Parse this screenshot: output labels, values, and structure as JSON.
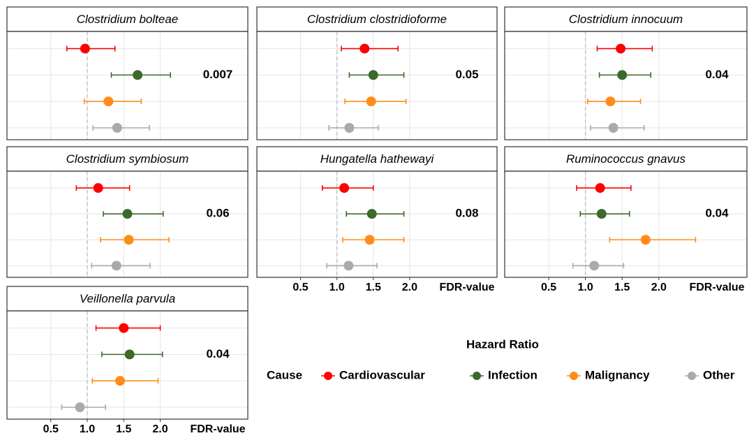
{
  "chart_data": {
    "type": "forest",
    "xlabel": "Hazard Ratio",
    "legend_title": "Cause",
    "fdr_label": "FDR-value",
    "xlim": [
      -0.1,
      3.2
    ],
    "xticks": [
      0.5,
      {
        "value": 1,
        "label": "1.0"
      },
      1.5,
      {
        "value": 2,
        "label": "2.0"
      }
    ],
    "ref": 1,
    "grid": true,
    "series": [
      {
        "name": "Cardiovascular",
        "color": "#ff0000"
      },
      {
        "name": "Infection",
        "color": "#3b6a2c"
      },
      {
        "name": "Malignancy",
        "color": "#ff8c1a"
      },
      {
        "name": "Other",
        "color": "#aaaaaa"
      }
    ],
    "panels": [
      {
        "title": "Clostridium bolteae",
        "fdr": 0.007,
        "values": [
          0.97,
          1.69,
          1.29,
          1.41
        ],
        "lower": [
          0.72,
          1.33,
          0.96,
          1.08
        ],
        "upper": [
          1.38,
          2.14,
          1.74,
          1.85
        ]
      },
      {
        "title": "Clostridium clostridioforme",
        "fdr": 0.05,
        "values": [
          1.38,
          1.5,
          1.47,
          1.17
        ],
        "lower": [
          1.06,
          1.17,
          1.11,
          0.89
        ],
        "upper": [
          1.84,
          1.92,
          1.95,
          1.57
        ]
      },
      {
        "title": "Clostridium innocuum",
        "fdr": 0.04,
        "values": [
          1.48,
          1.5,
          1.34,
          1.38
        ],
        "lower": [
          1.16,
          1.19,
          1.03,
          1.07
        ],
        "upper": [
          1.91,
          1.89,
          1.75,
          1.8
        ]
      },
      {
        "title": "Clostridium symbiosum",
        "fdr": 0.06,
        "values": [
          1.15,
          1.55,
          1.57,
          1.4
        ],
        "lower": [
          0.85,
          1.22,
          1.18,
          1.06
        ],
        "upper": [
          1.58,
          2.04,
          2.12,
          1.86
        ]
      },
      {
        "title": "Hungatella hathewayi",
        "fdr": 0.08,
        "values": [
          1.1,
          1.48,
          1.45,
          1.16
        ],
        "lower": [
          0.8,
          1.13,
          1.08,
          0.86
        ],
        "upper": [
          1.5,
          1.92,
          1.92,
          1.55
        ]
      },
      {
        "title": "Ruminococcus gnavus",
        "fdr": 0.04,
        "values": [
          1.2,
          1.22,
          1.82,
          1.12
        ],
        "lower": [
          0.88,
          0.93,
          1.33,
          0.83
        ],
        "upper": [
          1.62,
          1.6,
          2.5,
          1.52
        ]
      },
      {
        "title": "Veillonella parvula",
        "fdr": 0.04,
        "values": [
          1.5,
          1.58,
          1.45,
          0.9
        ],
        "lower": [
          1.12,
          1.2,
          1.07,
          0.65
        ],
        "upper": [
          2.0,
          2.03,
          1.97,
          1.25
        ]
      }
    ]
  }
}
